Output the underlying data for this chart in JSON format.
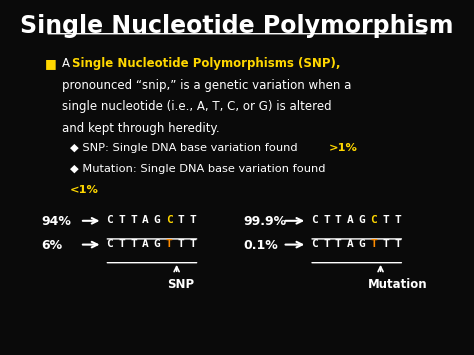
{
  "bg_color": "#0a0a0a",
  "title": "Single Nucleotide Polymorphism",
  "title_color": "#ffffff",
  "bullet_highlight_color": "#FFD700",
  "mut_letter_color": "#FF8C00",
  "snp_letter_color": "#FFD700",
  "seq_top": "C T T A G C T T",
  "seq_bot": "C T T A G T T T",
  "pct_94": "94%",
  "pct_6": "6%",
  "pct_999": "99.9%",
  "pct_01": "0.1%",
  "snp_label": "SNP",
  "mut_label": "Mutation"
}
